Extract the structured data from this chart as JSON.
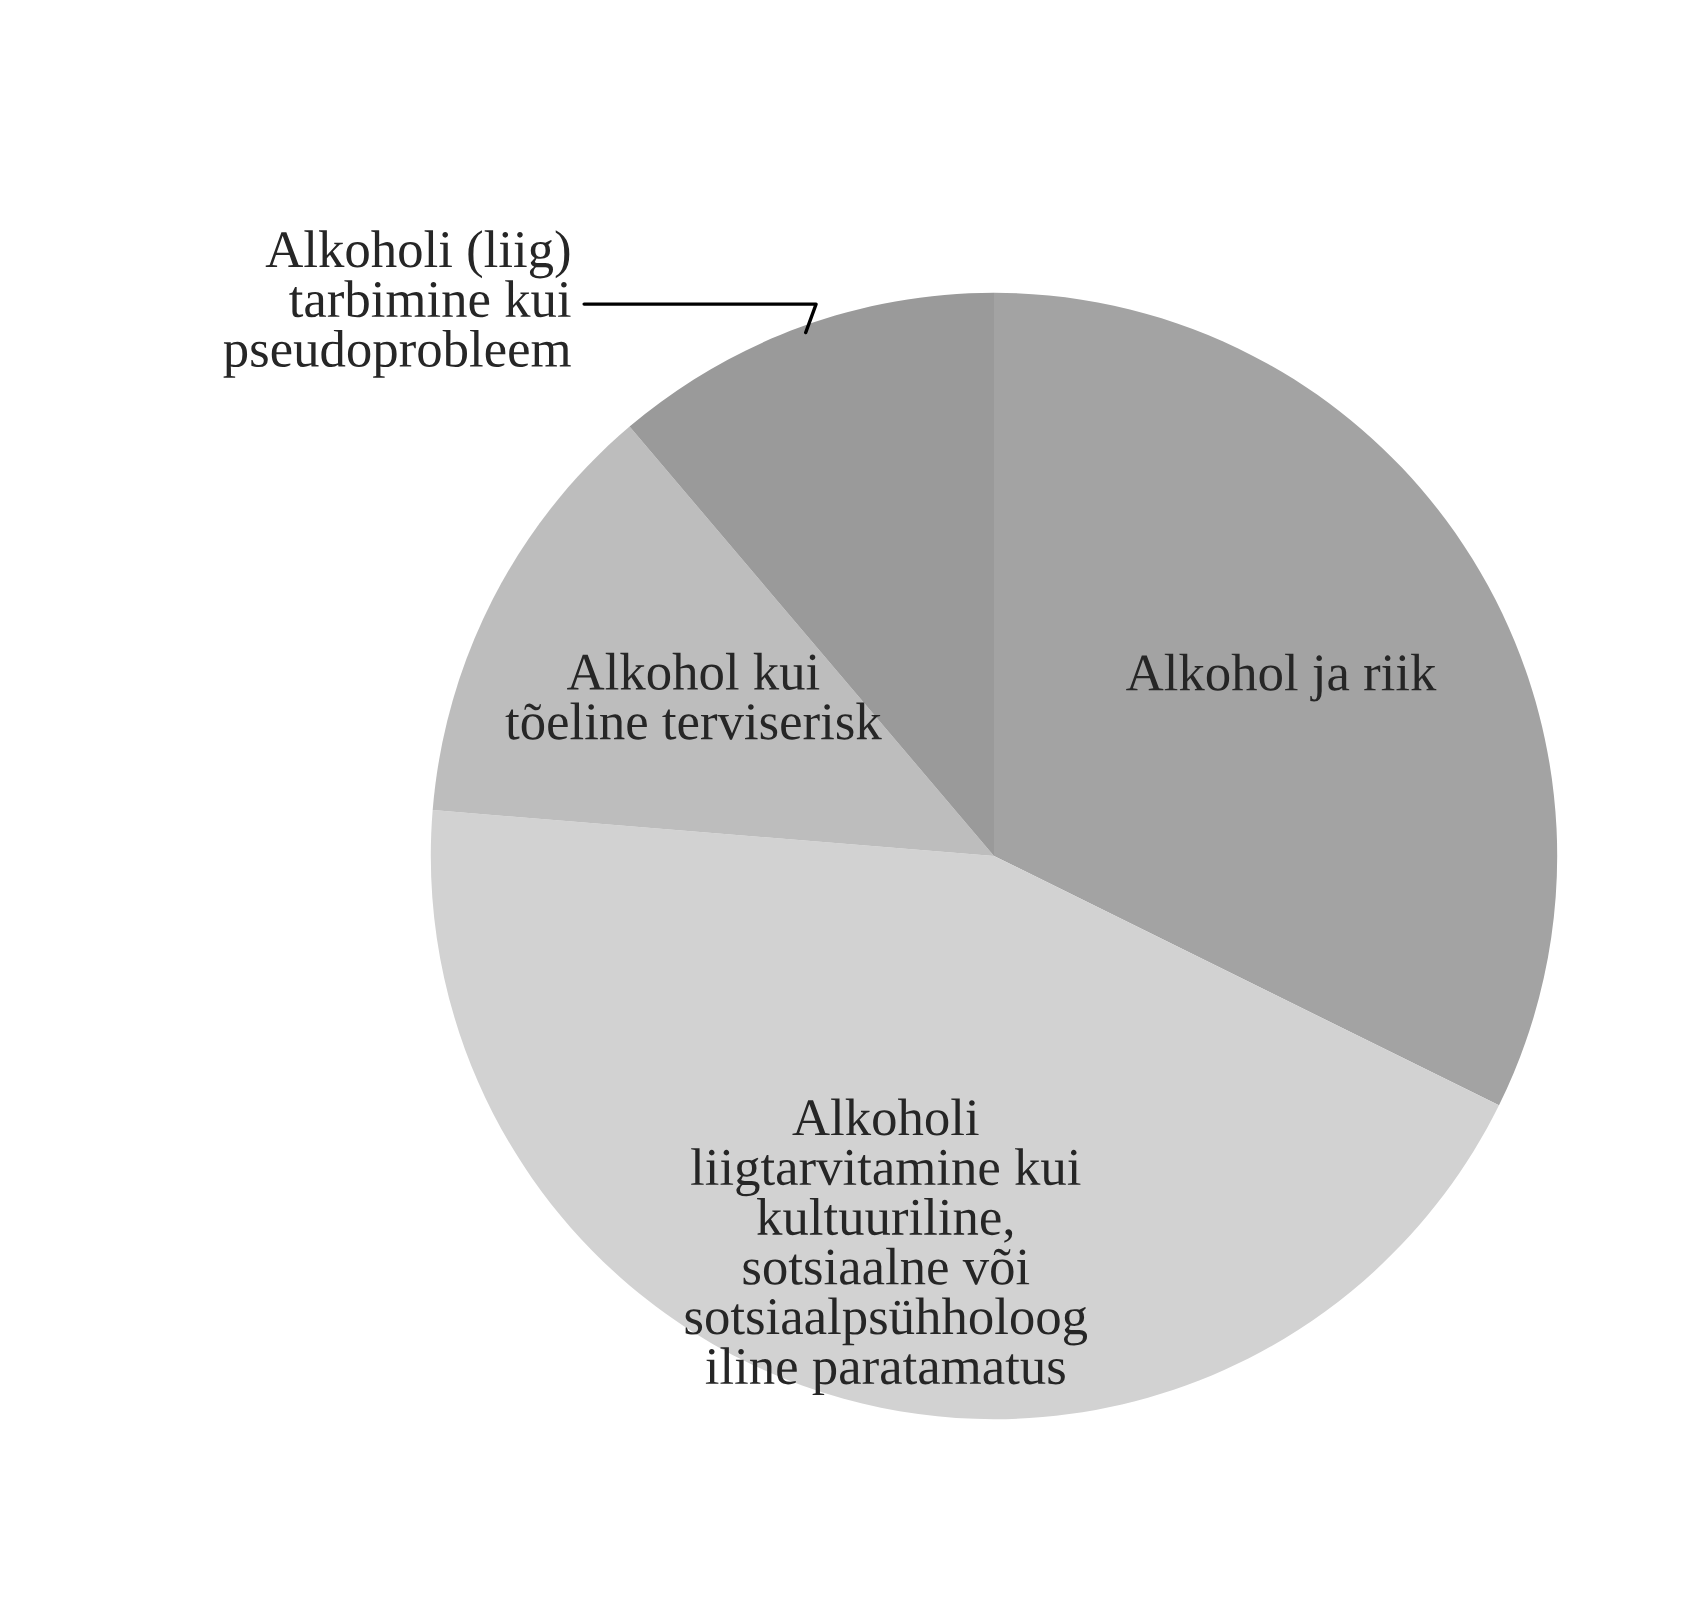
{
  "chart_data": {
    "type": "pie",
    "categories": [
      "Alkohol ja riik",
      "Alkoholi\nliigtarvitamine kui\nkultuuriline,\nsotsiaalne või\nsotsiaalpsühholoog\niline paratamatus",
      "Alkohol kui\ntõeline terviserisk",
      "Alkoholi (liig)\ntarbimine kui\npseudoprobleem"
    ],
    "values": [
      32.3,
      44.0,
      12.5,
      11.2
    ],
    "colors": [
      "#a3a3a3",
      "#d2d2d2",
      "#bdbdbd",
      "#9a9a9a"
    ]
  }
}
